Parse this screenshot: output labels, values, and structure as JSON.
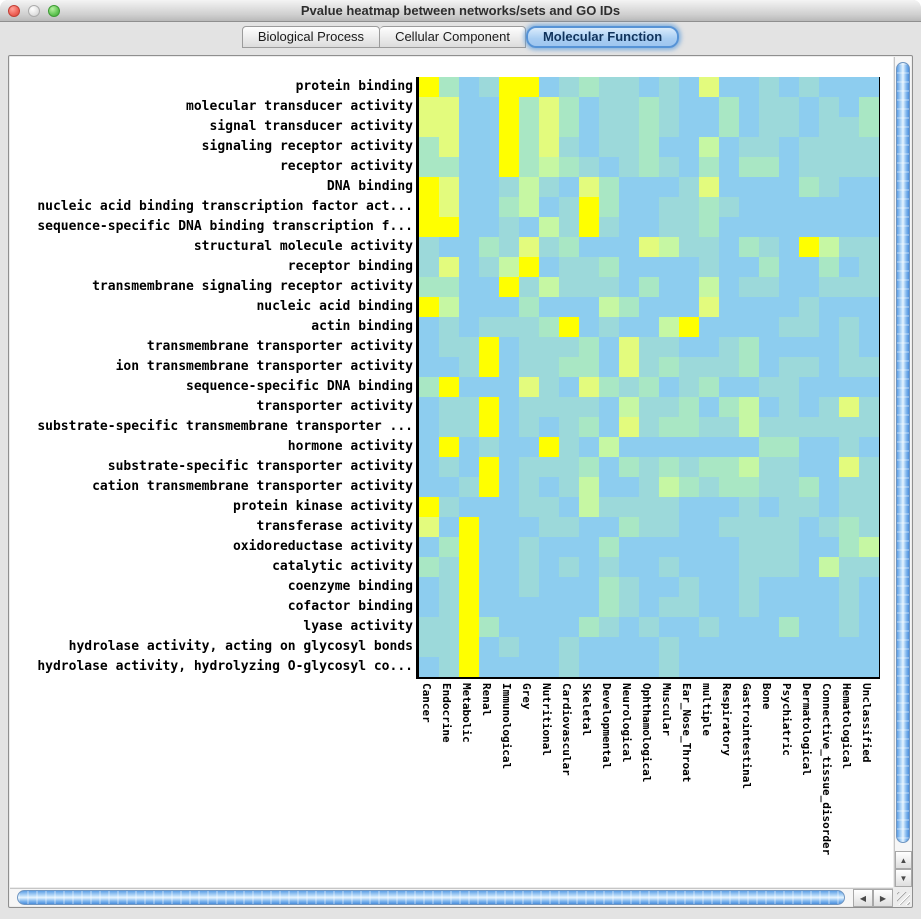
{
  "window": {
    "title": "Pvalue heatmap between networks/sets and GO IDs"
  },
  "tabs": [
    {
      "label": "Biological Process",
      "selected": false
    },
    {
      "label": "Cellular Component",
      "selected": false
    },
    {
      "label": "Molecular Function",
      "selected": true
    }
  ],
  "scrollbars": {
    "up_arrow": "▲",
    "down_arrow": "▼",
    "left_arrow": "◀",
    "right_arrow": "▶"
  },
  "chart_data": {
    "type": "heatmap",
    "title": "Pvalue heatmap between networks/sets and GO IDs",
    "rows": [
      "protein binding",
      "molecular transducer activity",
      "signal transducer activity",
      "signaling receptor activity",
      "receptor activity",
      "DNA binding",
      "nucleic acid binding transcription factor act...",
      "sequence-specific DNA binding transcription f...",
      "structural molecule activity",
      "receptor binding",
      "transmembrane signaling receptor activity",
      "nucleic acid binding",
      "actin binding",
      "transmembrane transporter activity",
      "ion transmembrane transporter activity",
      "sequence-specific DNA binding",
      "transporter activity",
      "substrate-specific transmembrane transporter ...",
      "hormone activity",
      "substrate-specific transporter activity",
      "cation transmembrane transporter activity",
      "protein kinase activity",
      "transferase activity",
      "oxidoreductase activity",
      "catalytic activity",
      "coenzyme binding",
      "cofactor binding",
      "lyase activity",
      "hydrolase activity, acting on glycosyl bonds",
      "hydrolase activity, hydrolyzing O-glycosyl co..."
    ],
    "cols": [
      "Cancer",
      "Endocrine",
      "Metabolic",
      "Renal",
      "Immunological",
      "Grey",
      "Nutritional",
      "Cardiovascular",
      "Skeletal",
      "Developmental",
      "Neurological",
      "Ophthamological",
      "Muscular",
      "Ear_Nose_Throat",
      "multiple",
      "Respiratory",
      "Gastrointestinal",
      "Bone",
      "Psychiatric",
      "Dermatological",
      "Connective_tissue_disorder",
      "Hematological",
      "Unclassified"
    ],
    "levels": {
      "0": "#8DCDEF",
      "1": "#9CD9DA",
      "2": "#A9E7C4",
      "3": "#C6F7A3",
      "4": "#E3FB7D",
      "5": "#FFFF00"
    },
    "level_meaning": "0 = least significant (blue) through 5 = most significant (yellow)",
    "grid": [
      "52015501211010400101000",
      "44005242011210020110102",
      "44005242011210020110112",
      "24005241011200301101111",
      "22005232101210202201111",
      "54001310420001400002100",
      "54002301520011210000000",
      "55001031510011200000000",
      "10021412000431102105311",
      "14013501120000100200201",
      "22005131110200301100111",
      "53000200032000400001000",
      "01011125010035000011010",
      "01150111204110012000010",
      "00150112204121112011011",
      "25000410421201200110000",
      "01150111103112023010141",
      "01150101204122113111111",
      "05010051030000000220010",
      "01050111202121223110041",
      "00150101300132122112011",
      "51000110311110001011011",
      "40500011002110011110121",
      "02500100020000001110023",
      "21500101010010001110311",
      "01500100021001001000010",
      "01500000021011001000010",
      "11520000210100100020010",
      "11501001000010000000000",
      "01500001000010000000000"
    ]
  }
}
